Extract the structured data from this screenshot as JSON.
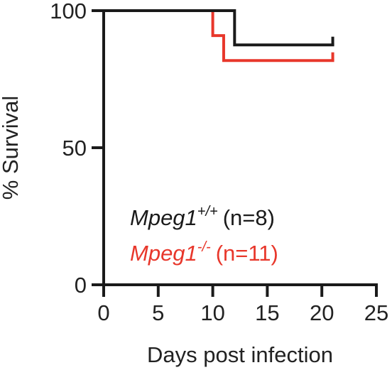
{
  "chart_data": {
    "type": "line",
    "chart_style": "kaplan-meier step curve",
    "xlabel": "Days post infection",
    "ylabel": "% Survival",
    "xlim": [
      0,
      25
    ],
    "ylim": [
      0,
      100
    ],
    "xticks": [
      "0",
      "5",
      "10",
      "15",
      "20",
      "25"
    ],
    "yticks": [
      "0",
      "50",
      "100"
    ],
    "grid": false,
    "legend_position": "inside-lower-left",
    "series": [
      {
        "name": "Mpeg1",
        "superscript": "+/+",
        "suffix": "(n=8)",
        "color": "#1a1a1a",
        "steps": [
          [
            0,
            100
          ],
          [
            12,
            100
          ],
          [
            12,
            87.5
          ],
          [
            21,
            87.5
          ]
        ],
        "end_tick": [
          21,
          87.5,
          90.5
        ]
      },
      {
        "name": "Mpeg1",
        "superscript": "-/-",
        "suffix": "(n=11)",
        "color": "#e8372b",
        "steps": [
          [
            0,
            100
          ],
          [
            10,
            100
          ],
          [
            10,
            90.9
          ],
          [
            11,
            90.9
          ],
          [
            11,
            81.8
          ],
          [
            21,
            81.8
          ]
        ],
        "end_tick": [
          21,
          81.8,
          84.8
        ]
      }
    ]
  }
}
